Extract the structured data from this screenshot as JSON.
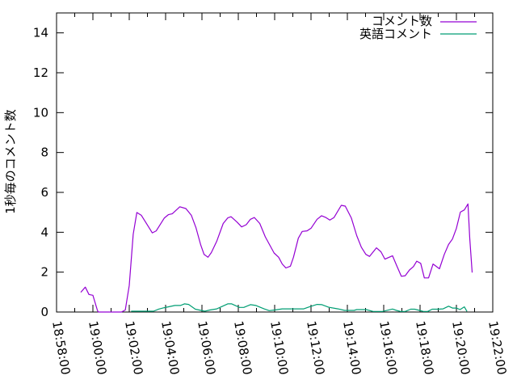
{
  "chart_data": {
    "type": "line",
    "title": "",
    "xlabel": "",
    "ylabel": "1秒毎のコメント数",
    "xlim": [
      "18:58:00",
      "19:22:00"
    ],
    "ylim": [
      0,
      15
    ],
    "x_tick_labels": [
      "18:58:00",
      "19:00:00",
      "19:02:00",
      "19:04:00",
      "19:06:00",
      "19:08:00",
      "19:10:00",
      "19:12:00",
      "19:14:00",
      "19:16:00",
      "19:18:00",
      "19:20:00",
      "19:22:00"
    ],
    "y_tick_labels": [
      "0",
      "2",
      "4",
      "6",
      "8",
      "10",
      "12",
      "14"
    ],
    "grid": false,
    "legend_position": "top-right",
    "series": [
      {
        "name": "コメント数",
        "color": "#9400d3",
        "points": [
          [
            "18:59:20",
            0.99
          ],
          [
            "18:59:35",
            1.25
          ],
          [
            "18:59:47",
            0.88
          ],
          [
            "19:00:00",
            0.84
          ],
          [
            "19:00:15",
            0.08
          ],
          [
            "19:00:18",
            0
          ],
          [
            "19:01:34",
            0
          ],
          [
            "19:01:47",
            0.1
          ],
          [
            "19:02:00",
            1.33
          ],
          [
            "19:02:13",
            3.9
          ],
          [
            "19:02:25",
            4.99
          ],
          [
            "19:02:40",
            4.85
          ],
          [
            "19:03:02",
            4.31
          ],
          [
            "19:03:16",
            3.97
          ],
          [
            "19:03:29",
            4.07
          ],
          [
            "19:03:56",
            4.72
          ],
          [
            "19:04:09",
            4.88
          ],
          [
            "19:04:22",
            4.93
          ],
          [
            "19:04:47",
            5.28
          ],
          [
            "19:05:07",
            5.19
          ],
          [
            "19:05:25",
            4.85
          ],
          [
            "19:05:40",
            4.24
          ],
          [
            "19:05:56",
            3.36
          ],
          [
            "19:06:07",
            2.89
          ],
          [
            "19:06:20",
            2.75
          ],
          [
            "19:06:31",
            2.98
          ],
          [
            "19:06:49",
            3.56
          ],
          [
            "19:07:10",
            4.44
          ],
          [
            "19:07:25",
            4.72
          ],
          [
            "19:07:36",
            4.78
          ],
          [
            "19:07:56",
            4.51
          ],
          [
            "19:08:11",
            4.27
          ],
          [
            "19:08:26",
            4.38
          ],
          [
            "19:08:40",
            4.65
          ],
          [
            "19:08:53",
            4.74
          ],
          [
            "19:09:11",
            4.44
          ],
          [
            "19:09:29",
            3.77
          ],
          [
            "19:09:58",
            2.96
          ],
          [
            "19:10:13",
            2.75
          ],
          [
            "19:10:25",
            2.41
          ],
          [
            "19:10:37",
            2.21
          ],
          [
            "19:10:52",
            2.3
          ],
          [
            "19:11:02",
            2.75
          ],
          [
            "19:11:18",
            3.7
          ],
          [
            "19:11:31",
            4.04
          ],
          [
            "19:11:47",
            4.07
          ],
          [
            "19:12:00",
            4.2
          ],
          [
            "19:12:20",
            4.65
          ],
          [
            "19:12:35",
            4.83
          ],
          [
            "19:12:49",
            4.74
          ],
          [
            "19:13:02",
            4.61
          ],
          [
            "19:13:16",
            4.74
          ],
          [
            "19:13:40",
            5.35
          ],
          [
            "19:13:53",
            5.31
          ],
          [
            "19:14:13",
            4.72
          ],
          [
            "19:14:31",
            3.83
          ],
          [
            "19:14:46",
            3.25
          ],
          [
            "19:15:01",
            2.89
          ],
          [
            "19:15:13",
            2.79
          ],
          [
            "19:15:36",
            3.22
          ],
          [
            "19:15:51",
            3.02
          ],
          [
            "19:16:04",
            2.65
          ],
          [
            "19:16:29",
            2.82
          ],
          [
            "19:16:42",
            2.35
          ],
          [
            "19:16:58",
            1.79
          ],
          [
            "19:17:11",
            1.82
          ],
          [
            "19:17:25",
            2.11
          ],
          [
            "19:17:38",
            2.28
          ],
          [
            "19:17:49",
            2.55
          ],
          [
            "19:18:02",
            2.44
          ],
          [
            "19:18:14",
            1.71
          ],
          [
            "19:18:28",
            1.71
          ],
          [
            "19:18:43",
            2.41
          ],
          [
            "19:19:04",
            2.17
          ],
          [
            "19:19:20",
            2.89
          ],
          [
            "19:19:34",
            3.39
          ],
          [
            "19:19:47",
            3.66
          ],
          [
            "19:20:00",
            4.2
          ],
          [
            "19:20:13",
            5.01
          ],
          [
            "19:20:26",
            5.12
          ],
          [
            "19:20:38",
            5.42
          ],
          [
            "19:20:44",
            3.7
          ],
          [
            "19:20:52",
            1.98
          ]
        ]
      },
      {
        "name": "英語コメント",
        "color": "#009e73",
        "points": [
          [
            "19:02:06",
            0.04
          ],
          [
            "19:03:20",
            0.04
          ],
          [
            "19:03:38",
            0.15
          ],
          [
            "19:03:56",
            0.22
          ],
          [
            "19:04:31",
            0.33
          ],
          [
            "19:04:49",
            0.33
          ],
          [
            "19:05:02",
            0.41
          ],
          [
            "19:05:16",
            0.38
          ],
          [
            "19:05:38",
            0.14
          ],
          [
            "19:06:09",
            0.04
          ],
          [
            "19:06:26",
            0.1
          ],
          [
            "19:06:49",
            0.16
          ],
          [
            "19:07:25",
            0.41
          ],
          [
            "19:07:38",
            0.41
          ],
          [
            "19:08:04",
            0.23
          ],
          [
            "19:08:18",
            0.23
          ],
          [
            "19:08:40",
            0.37
          ],
          [
            "19:08:58",
            0.33
          ],
          [
            "19:09:25",
            0.16
          ],
          [
            "19:09:42",
            0.07
          ],
          [
            "19:10:00",
            0.1
          ],
          [
            "19:10:25",
            0.16
          ],
          [
            "19:11:36",
            0.16
          ],
          [
            "19:11:51",
            0.24
          ],
          [
            "19:12:20",
            0.38
          ],
          [
            "19:12:36",
            0.37
          ],
          [
            "19:12:58",
            0.24
          ],
          [
            "19:13:29",
            0.16
          ],
          [
            "19:13:51",
            0.08
          ],
          [
            "19:14:22",
            0.08
          ],
          [
            "19:14:31",
            0.12
          ],
          [
            "19:15:02",
            0.12
          ],
          [
            "19:15:25",
            0.03
          ],
          [
            "19:15:56",
            0.03
          ],
          [
            "19:16:29",
            0.15
          ],
          [
            "19:16:42",
            0.08
          ],
          [
            "19:16:56",
            0.03
          ],
          [
            "19:17:11",
            0.03
          ],
          [
            "19:17:29",
            0.14
          ],
          [
            "19:17:42",
            0.14
          ],
          [
            "19:17:58",
            0.08
          ],
          [
            "19:18:11",
            0.03
          ],
          [
            "19:18:25",
            0.03
          ],
          [
            "19:18:40",
            0.14
          ],
          [
            "19:18:58",
            0.14
          ],
          [
            "19:19:16",
            0.16
          ],
          [
            "19:19:34",
            0.29
          ],
          [
            "19:19:47",
            0.2
          ],
          [
            "19:20:00",
            0.2
          ],
          [
            "19:20:12",
            0.12
          ],
          [
            "19:20:26",
            0.26
          ],
          [
            "19:20:35",
            0.03
          ]
        ]
      }
    ]
  }
}
